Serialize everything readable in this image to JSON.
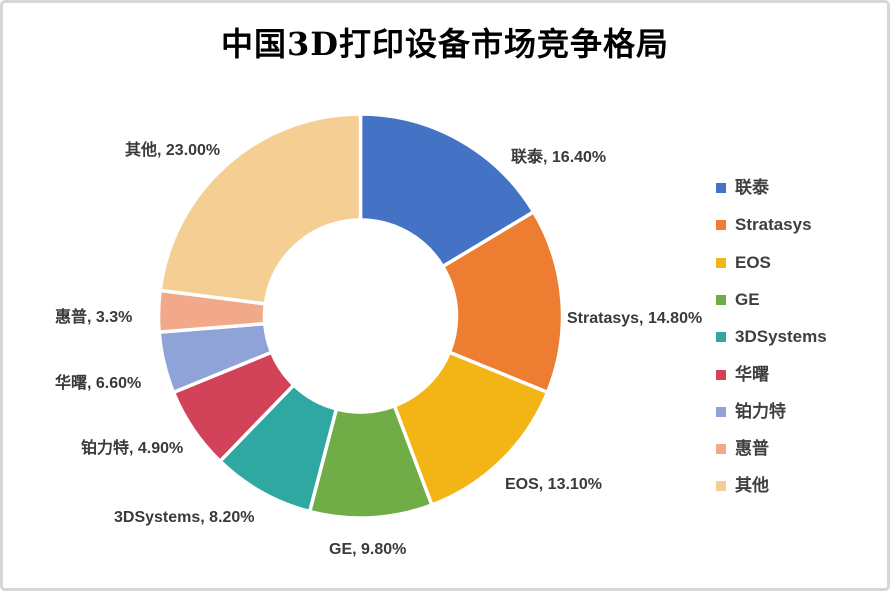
{
  "chart_data": {
    "type": "pie",
    "subtype": "donut",
    "title": "中国3D打印设备市场竞争格局",
    "unit": "%",
    "start_angle_deg": 0,
    "direction": "clockwise",
    "hole_ratio": 0.47,
    "legend_position": "right",
    "slices": [
      {
        "label": "联泰",
        "value": 16.4,
        "color": "#4472C4"
      },
      {
        "label": "Stratasys",
        "value": 14.8,
        "color": "#ED7D31"
      },
      {
        "label": "EOS",
        "value": 13.1,
        "color": "#F3B415"
      },
      {
        "label": "GE",
        "value": 9.8,
        "color": "#70AD47"
      },
      {
        "label": "3DSystems",
        "value": 8.2,
        "color": "#2EA8A1"
      },
      {
        "label": "华曙",
        "value": 6.6,
        "color": "#D24258"
      },
      {
        "label": "铂力特",
        "value": 4.9,
        "color": "#8FA3D8"
      },
      {
        "label": "惠普",
        "value": 3.3,
        "color": "#F2A98A"
      },
      {
        "label": "其他",
        "value": 23.0,
        "color": "#F4CE93"
      }
    ],
    "legend_order": [
      "联泰",
      "Stratasys",
      "EOS",
      "GE",
      "3DSystems",
      "华曙",
      "铂力特",
      "惠普",
      "其他"
    ],
    "data_labels": [
      "联泰, 16.40%",
      "Stratasys, 14.80%",
      "EOS, 13.10%",
      "GE, 9.80%",
      "3DSystems, 8.20%",
      "铂力特, 4.90%",
      "华曙, 6.60%",
      "惠普, 3.3%",
      "其他, 23.00%"
    ]
  },
  "colors": {
    "canvas_border": "#D6D6D6",
    "label_text": "#3A3A3A",
    "legend_text": "#3F3F3F",
    "title_text": "#000000",
    "slice_gap": "#FFFFFF"
  }
}
